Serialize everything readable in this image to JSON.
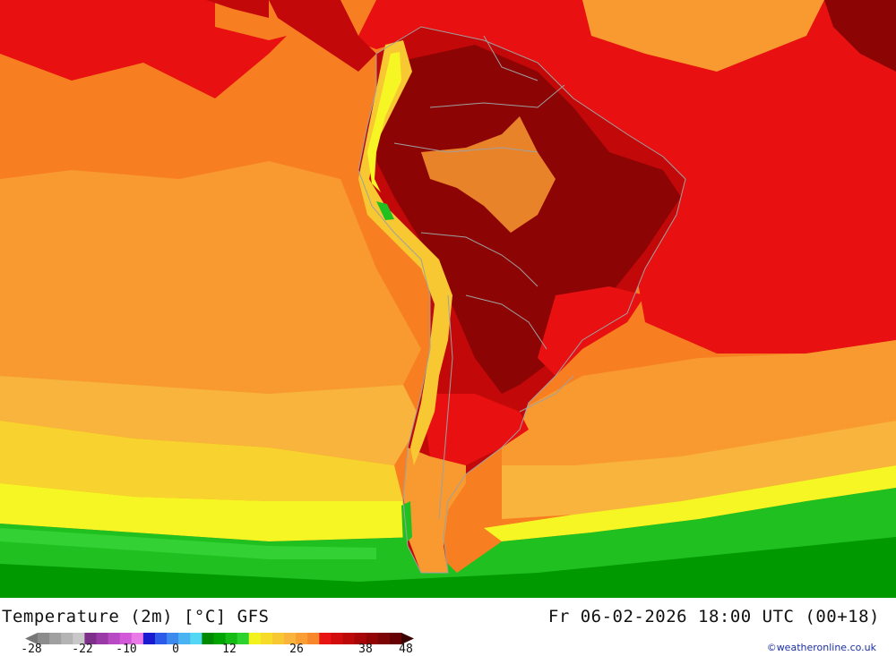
{
  "map": {
    "title": "Temperature (2m) [°C] GFS",
    "valid_time": "Fr 06-02-2026 18:00 UTC (00+18)",
    "credit": "©weatheronline.co.uk"
  },
  "legend": {
    "tick_labels": [
      "-28",
      "-22",
      "-10",
      "0",
      "12",
      "26",
      "38",
      "48"
    ],
    "colors": [
      "#8c8c8c",
      "#a0a0a0",
      "#b4b4b4",
      "#c8c8c8",
      "#7e2f8a",
      "#9a3aa6",
      "#b84ac4",
      "#d25ad8",
      "#ea7ae8",
      "#1a1ad0",
      "#2d5ae8",
      "#3c8aee",
      "#4ab4f2",
      "#52d8f4",
      "#008a00",
      "#00a400",
      "#14bc14",
      "#2ed22e",
      "#f2f21e",
      "#f6dc28",
      "#f8c832",
      "#f8b43c",
      "#f89e32",
      "#f8862a",
      "#e81414",
      "#d20c0c",
      "#bc0808",
      "#a80606",
      "#920404",
      "#7c0404",
      "#660202"
    ],
    "arrow_left_color": "#777777",
    "arrow_right_color": "#3a0000"
  },
  "palette": {
    "green_dark": "#009a00",
    "green": "#20c020",
    "green_light": "#3cd83c",
    "yellow": "#f6f624",
    "yellow_orange": "#f8d22e",
    "light_orange": "#f8b43c",
    "orange": "#f89a30",
    "dark_orange": "#f87e22",
    "red": "#e81010",
    "dark_red": "#c20808",
    "maroon": "#8c0404",
    "border": "#a0a0a0"
  }
}
